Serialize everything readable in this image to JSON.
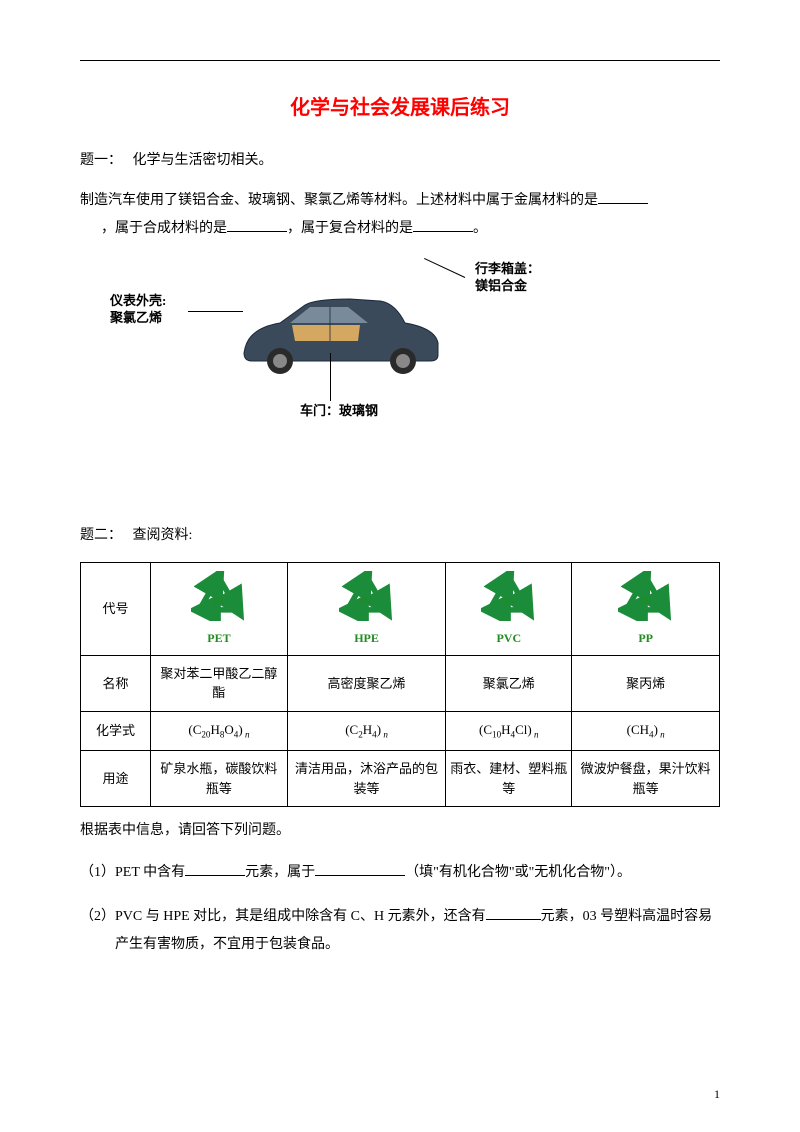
{
  "title": "化学与社会发展课后练习",
  "q1": {
    "label": "题一：",
    "intro": "化学与生活密切相关。",
    "text_a": "制造汽车使用了镁铝合金、玻璃钢、聚氯乙烯等材料。上述材料中属于金属材料的是",
    "text_b": "，属于合成材料的是",
    "text_c": "，属于复合材料的是",
    "text_d": "。",
    "car_labels": {
      "dash": "仪表外壳:",
      "dash2": "聚氯乙烯",
      "trunk": "行李箱盖：",
      "trunk2": "镁铝合金",
      "door": "车门：玻璃钢"
    },
    "car_colors": {
      "body": "#3a4a5a",
      "window": "#7a8a9a",
      "interior": "#d4a860",
      "wheel": "#2a2a2a"
    }
  },
  "q2": {
    "label": "题二：",
    "intro": "查阅资料:",
    "table": {
      "row_headers": [
        "代号",
        "名称",
        "化学式",
        "用途"
      ],
      "recycle_color": "#1a8c3a",
      "cols": [
        {
          "num": "01",
          "code": "PET",
          "name": "聚对苯二甲酸乙二醇酯",
          "formula_parts": [
            "(C",
            "20",
            "H",
            "8",
            "O",
            "4",
            ")"
          ],
          "use": "矿泉水瓶，碳酸饮料瓶等"
        },
        {
          "num": "02",
          "code": "HPE",
          "name": "高密度聚乙烯",
          "formula_parts": [
            "(C",
            "2",
            "H",
            "4",
            ")"
          ],
          "use": "清洁用品，沐浴产品的包装等"
        },
        {
          "num": "03",
          "code": "PVC",
          "name": "聚氯乙烯",
          "formula_parts": [
            "(C",
            "10",
            "H",
            "4",
            "Cl)"
          ],
          "use": "雨衣、建材、塑料瓶等"
        },
        {
          "num": "05",
          "code": "PP",
          "name": "聚丙烯",
          "formula_parts": [
            "(CH",
            "4",
            ")"
          ],
          "use": "微波炉餐盘，果汁饮料瓶等"
        }
      ]
    },
    "after_table": "根据表中信息，请回答下列问题。",
    "sub": [
      {
        "n": "（1）",
        "a": "PET 中含有",
        "b": "元素，属于",
        "c": "（填\"有机化合物\"或\"无机化合物\"）。"
      },
      {
        "n": "（2）",
        "a": "PVC 与 HPE 对比，其是组成中除含有 C、H 元素外，还含有",
        "b": "元素，03 号塑料高温时容易产生有害物质，不宜用于包装食品。"
      }
    ]
  },
  "page_number": "1"
}
